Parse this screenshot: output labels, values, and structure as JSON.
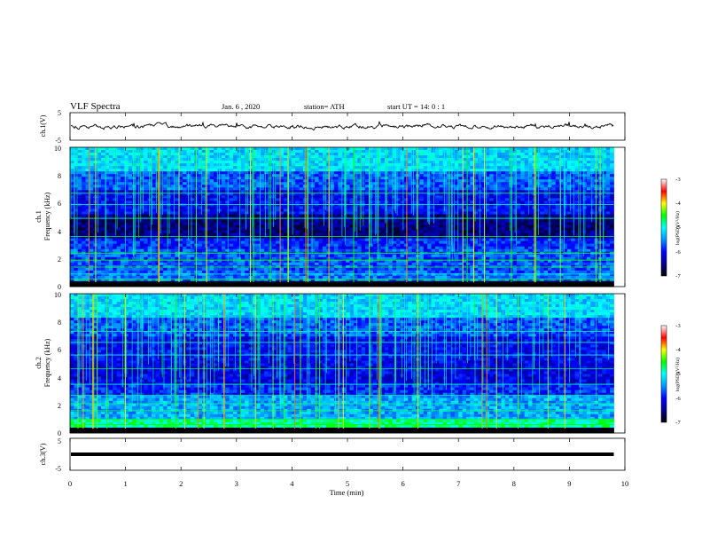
{
  "chart_data": {
    "type": "heatmap",
    "header": {
      "title": "VLF  Spectra",
      "date": "Jan.  6  , 2020",
      "station": "station= ATH",
      "start": "start  UT  =    14: 0   : 1"
    },
    "x_axis": {
      "label": "Time  (min)",
      "range": [
        0,
        10
      ],
      "ticks": [
        "0",
        "1",
        "2",
        "3",
        "4",
        "5",
        "6",
        "7",
        "8",
        "9",
        "10"
      ]
    },
    "channels": [
      {
        "kind": "waveform",
        "ylabel": "ch.1(V)",
        "yticks": [
          "5",
          "-5"
        ],
        "ylim": [
          -5,
          5
        ],
        "level": 0,
        "color": "#000000"
      },
      {
        "kind": "spectrogram",
        "ylabel": "ch.1\nFrequency (kHz)",
        "ylabel_lines": [
          "ch.1",
          "Frequency  (kHz)"
        ],
        "yticks": [
          "0",
          "2",
          "4",
          "6",
          "8",
          "10"
        ],
        "ylim": [
          0,
          10
        ],
        "colorbar": {
          "label": "log(PSD)(V²/Hz)",
          "ticks": [
            "-3",
            "-4",
            "-5",
            "-6",
            "-7"
          ],
          "range": [
            -7,
            -3
          ]
        }
      },
      {
        "kind": "spectrogram",
        "ylabel": "ch.2\nFrequency (kHz)",
        "ylabel_lines": [
          "ch.2",
          "Frequency  (kHz)"
        ],
        "yticks": [
          "0",
          "2",
          "4",
          "6",
          "8",
          "10"
        ],
        "ylim": [
          0,
          10
        ],
        "colorbar": {
          "label": "log(PSD)(V²/Hz)",
          "ticks": [
            "-3",
            "-4",
            "-5",
            "-6",
            "-7"
          ],
          "range": [
            -7,
            -3
          ]
        }
      },
      {
        "kind": "waveform",
        "ylabel": "ch.3(V)",
        "yticks": [
          "5",
          "-5"
        ],
        "ylim": [
          -5,
          5
        ],
        "level": 0,
        "color": "#000000"
      }
    ],
    "data_end_min": 9.8,
    "colormap": [
      "#000000",
      "#00008c",
      "#0000ff",
      "#0096ff",
      "#00ffff",
      "#00ff00",
      "#ffff00",
      "#ff0000",
      "#ffffff"
    ]
  }
}
